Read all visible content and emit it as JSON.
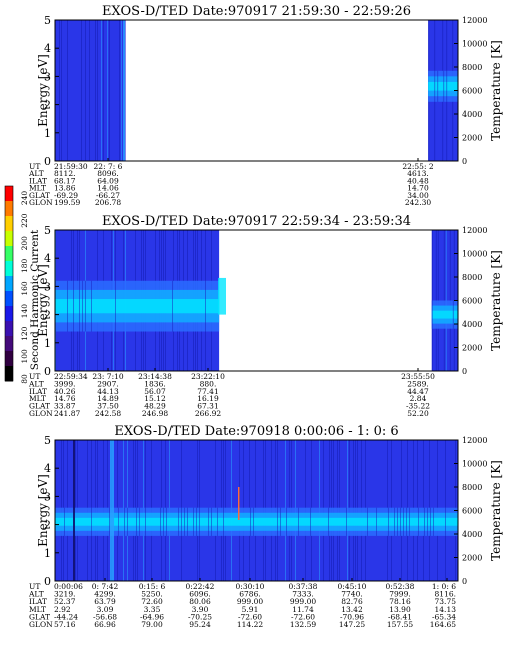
{
  "colorbar": {
    "label": "Second Harmonic Current",
    "ticks": [
      "240",
      "220",
      "200",
      "180",
      "160",
      "140",
      "120",
      "100",
      "80"
    ],
    "colors": [
      "#ff0000",
      "#ff7a00",
      "#ffcf00",
      "#c8ff00",
      "#36ff66",
      "#00ffd8",
      "#00a6ff",
      "#0050ff",
      "#1a18e8",
      "#3a10b0",
      "#440a7a",
      "#300040",
      "#000000"
    ]
  },
  "colors": {
    "background": "#2a36e8",
    "dark_stripe": "#1a22c0",
    "bright_stripe": "#28a0ff",
    "band_core": "#00e6ff",
    "band_mid": "#12a8ff",
    "band_outer": "#2a6cff",
    "trace": "#ff6a3a"
  },
  "chart_data": [
    {
      "type": "heatmap",
      "title": "EXOS-D/TED   Date:970917  21:59:30 - 22:59:26",
      "ylabel": "Energy [eV]",
      "ylabel_right": "Temperature [K]",
      "ylim": [
        0,
        5
      ],
      "ylim_right": [
        0,
        12000
      ],
      "y_ticks": [
        "0",
        "1",
        "2",
        "3",
        "4",
        "5"
      ],
      "y_right_ticks": [
        "0",
        "2000",
        "4000",
        "6000",
        "8000",
        "10000",
        "12000"
      ],
      "orbit_labels": [
        "UT",
        "ALT",
        "ILAT",
        "MLT",
        "GLAT",
        "GLON"
      ],
      "orbit_columns": [
        {
          "UT": "21:59:30",
          "ALT": "8112.",
          "ILAT": "68.17",
          "MLT": "13.86",
          "GLAT": "-69.29",
          "GLON": "199.59"
        },
        {
          "UT": "22: 7: 6",
          "ALT": "8096.",
          "ILAT": "64.09",
          "MLT": "14.06",
          "GLAT": "-66.27",
          "GLON": "206.78"
        },
        {
          "UT": "22:55: 2",
          "ALT": "4613.",
          "ILAT": "40.48",
          "MLT": "14.70",
          "GLAT": "34.00",
          "GLON": "242.30"
        }
      ],
      "data_segments": [
        {
          "start": "21:59:30",
          "end": "22:10:00"
        },
        {
          "start": "22:55:00",
          "end": "22:59:26"
        }
      ],
      "energy_band": [
        {
          "segment": 2,
          "low_eV": 2.1,
          "high_eV": 3.2
        }
      ]
    },
    {
      "type": "heatmap",
      "title": "EXOS-D/TED   Date:970917  22:59:34 - 23:59:34",
      "ylabel": "Energy [eV]",
      "ylabel_right": "Temperature [K]",
      "ylim": [
        0,
        5
      ],
      "ylim_right": [
        0,
        12000
      ],
      "y_ticks": [
        "0",
        "1",
        "2",
        "3",
        "4",
        "5"
      ],
      "y_right_ticks": [
        "0",
        "2000",
        "4000",
        "6000",
        "8000",
        "10000",
        "12000"
      ],
      "orbit_labels": [
        "UT",
        "ALT",
        "ILAT",
        "MLT",
        "GLAT",
        "GLON"
      ],
      "orbit_columns": [
        {
          "UT": "22:59:34",
          "ALT": "3999.",
          "ILAT": "40.26",
          "MLT": "14.76",
          "GLAT": "33.87",
          "GLON": "241.87"
        },
        {
          "UT": "23: 7:10",
          "ALT": "2907.",
          "ILAT": "44.13",
          "MLT": "14.89",
          "GLAT": "37.50",
          "GLON": "242.58"
        },
        {
          "UT": "23:14:38",
          "ALT": "1836.",
          "ILAT": "56.07",
          "MLT": "15.12",
          "GLAT": "48.29",
          "GLON": "246.98"
        },
        {
          "UT": "23:22:10",
          "ALT": "880.",
          "ILAT": "77.41",
          "MLT": "16.19",
          "GLAT": "67.31",
          "GLON": "266.92"
        },
        {
          "UT": "23:55:50",
          "ALT": "2589.",
          "ILAT": "44.47",
          "MLT": "2.84",
          "GLAT": "-35.22",
          "GLON": "52.20"
        }
      ],
      "data_segments": [
        {
          "start": "22:59:34",
          "end": "23:24:00"
        },
        {
          "start": "23:55:40",
          "end": "23:59:34"
        }
      ],
      "energy_band": [
        {
          "segment": 1,
          "low_eV": 1.4,
          "high_eV": 3.2
        },
        {
          "segment": 2,
          "low_eV": 1.5,
          "high_eV": 2.5
        }
      ]
    },
    {
      "type": "heatmap",
      "title": "EXOS-D/TED   Date:970918   0:00:06 - 1: 0: 6",
      "ylabel": "Energy [eV]",
      "ylabel_right": "Temperature [K]",
      "ylim": [
        0,
        5
      ],
      "ylim_right": [
        0,
        12000
      ],
      "y_ticks": [
        "0",
        "1",
        "2",
        "3",
        "4",
        "5"
      ],
      "y_right_ticks": [
        "0",
        "2000",
        "4000",
        "6000",
        "8000",
        "10000",
        "12000"
      ],
      "orbit_labels": [
        "UT",
        "ALT",
        "ILAT",
        "MLT",
        "GLAT",
        "GLON"
      ],
      "orbit_columns": [
        {
          "UT": "0:00:06",
          "ALT": "3219.",
          "ILAT": "52.37",
          "MLT": "2.92",
          "GLAT": "-44.24",
          "GLON": "57.16"
        },
        {
          "UT": "0: 7:42",
          "ALT": "4299.",
          "ILAT": "63.79",
          "MLT": "3.09",
          "GLAT": "-56.68",
          "GLON": "66.96"
        },
        {
          "UT": "0:15: 6",
          "ALT": "5250.",
          "ILAT": "72.60",
          "MLT": "3.35",
          "GLAT": "-64.96",
          "GLON": "79.00"
        },
        {
          "UT": "0:22:42",
          "ALT": "6096.",
          "ILAT": "80.06",
          "MLT": "3.90",
          "GLAT": "-70.25",
          "GLON": "95.24"
        },
        {
          "UT": "0:30:10",
          "ALT": "6786.",
          "ILAT": "999.00",
          "MLT": "5.91",
          "GLAT": "-72.60",
          "GLON": "114.22"
        },
        {
          "UT": "0:37:38",
          "ALT": "7333.",
          "ILAT": "999.00",
          "MLT": "11.74",
          "GLAT": "-72.60",
          "GLON": "132.59"
        },
        {
          "UT": "0:45:10",
          "ALT": "7740.",
          "ILAT": "82.76",
          "MLT": "13.42",
          "GLAT": "-70.96",
          "GLON": "147.25"
        },
        {
          "UT": "0:52:38",
          "ALT": "7999.",
          "ILAT": "78.16",
          "MLT": "13.90",
          "GLAT": "-68.41",
          "GLON": "157.55"
        },
        {
          "UT": "1: 0: 6",
          "ALT": "8116.",
          "ILAT": "73.75",
          "MLT": "14.13",
          "GLAT": "-65.34",
          "GLON": "164.65"
        }
      ],
      "data_segments": [
        {
          "start": "0:00:06",
          "end": "1: 0: 6"
        }
      ],
      "energy_band": [
        {
          "segment": 1,
          "low_eV": 1.6,
          "high_eV": 2.6
        }
      ]
    }
  ]
}
